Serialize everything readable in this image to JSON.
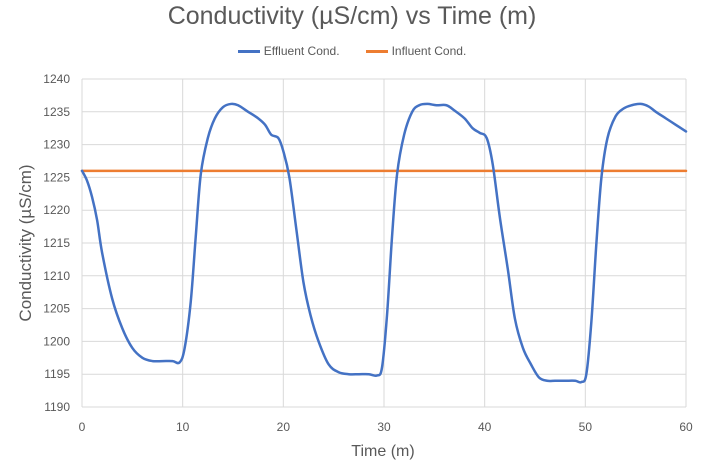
{
  "chart_data": {
    "type": "line",
    "title": "Conductivity (µS/cm) vs Time (m)",
    "xlabel": "Time (m)",
    "ylabel": "Conductivity (µS/cm)",
    "xlim": [
      0,
      60
    ],
    "ylim": [
      1190,
      1240
    ],
    "xticks": [
      0,
      10,
      20,
      30,
      40,
      50,
      60
    ],
    "yticks": [
      1190,
      1195,
      1200,
      1205,
      1210,
      1215,
      1220,
      1225,
      1230,
      1235,
      1240
    ],
    "grid": "vertical and horizontal",
    "legend_position": "top",
    "series": [
      {
        "name": "Effluent Cond.",
        "color": "#4472c4",
        "x": [
          0,
          0.5,
          1,
          1.5,
          2,
          3,
          4,
          5,
          6,
          7,
          8,
          9,
          9.7,
          10.2,
          10.8,
          11.3,
          11.8,
          12.5,
          13.2,
          14,
          14.8,
          15.5,
          16.5,
          17.5,
          18.2,
          18.8,
          19.5,
          20,
          20.6,
          21.3,
          22,
          22.7,
          23.5,
          24.5,
          25.5,
          26.5,
          27.5,
          28.5,
          29.3,
          29.8,
          30.3,
          30.8,
          31.3,
          32,
          32.8,
          33.5,
          34.3,
          35.2,
          36.2,
          37,
          38,
          38.8,
          39.5,
          40.2,
          40.8,
          41.5,
          42.3,
          43,
          43.8,
          44.6,
          45.4,
          46.2,
          47,
          48,
          49,
          49.6,
          50.1,
          50.6,
          51.1,
          51.6,
          52.2,
          53,
          53.8,
          54.6,
          55.5,
          56.3,
          57,
          58,
          59,
          60
        ],
        "values": [
          1226,
          1224.5,
          1222,
          1218.5,
          1213.5,
          1206.5,
          1202,
          1199,
          1197.5,
          1197,
          1197,
          1197,
          1196.8,
          1199,
          1206,
          1216,
          1225.5,
          1231,
          1234,
          1235.7,
          1236.2,
          1236,
          1235,
          1234,
          1233,
          1231.5,
          1231,
          1229,
          1225,
          1217,
          1209,
          1204,
          1200,
          1196.5,
          1195.3,
          1195,
          1195,
          1195,
          1194.8,
          1196,
          1204,
          1216,
          1225.5,
          1231.5,
          1235,
          1236,
          1236.2,
          1236,
          1236,
          1235.2,
          1234,
          1232.5,
          1231.8,
          1231,
          1227,
          1219,
          1211,
          1203.5,
          1199,
          1196.5,
          1194.5,
          1194,
          1194,
          1194,
          1194,
          1193.8,
          1195,
          1203,
          1215,
          1225,
          1231,
          1234.3,
          1235.5,
          1236,
          1236.2,
          1235.8,
          1235,
          1234,
          1233,
          1232
        ]
      },
      {
        "name": "Influent Cond.",
        "color": "#ed7d31",
        "x": [
          0,
          60
        ],
        "values": [
          1226,
          1226
        ]
      }
    ]
  }
}
